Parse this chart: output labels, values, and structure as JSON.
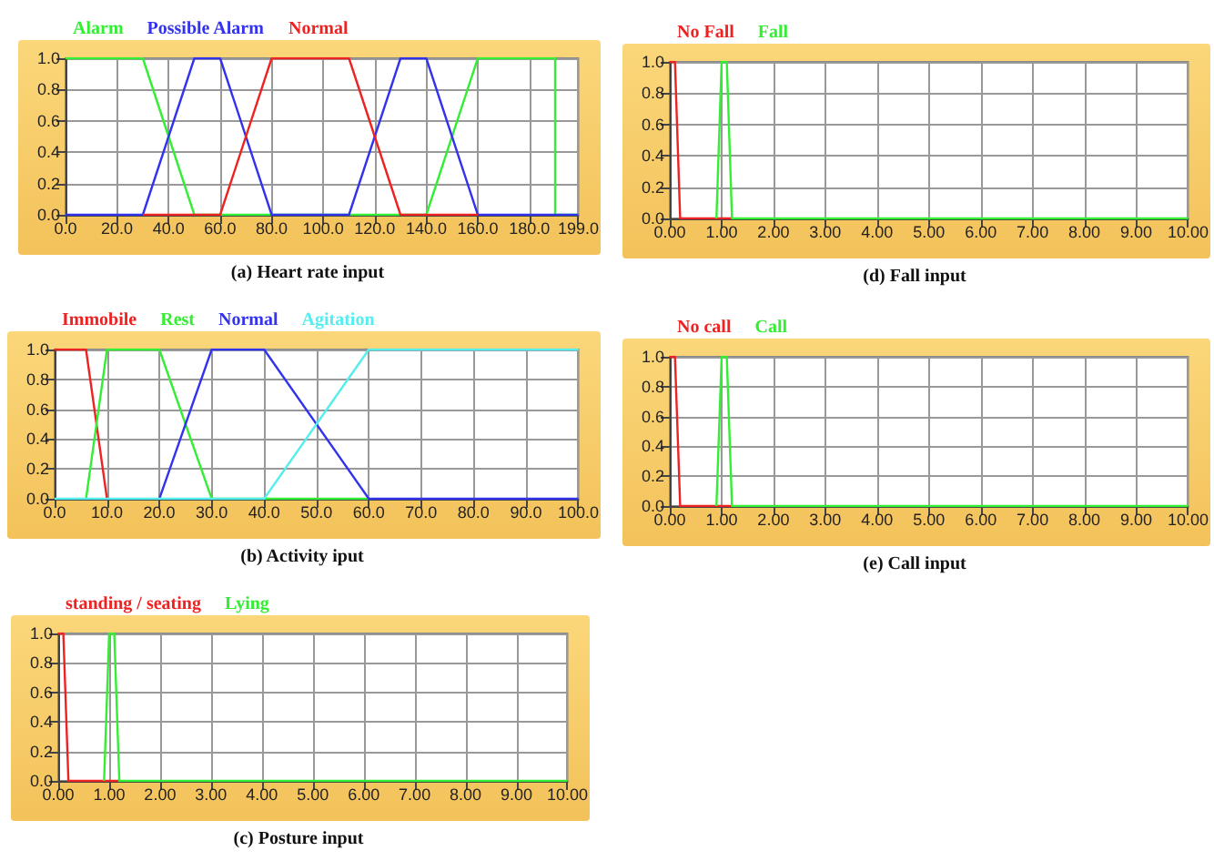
{
  "chart_data": [
    {
      "type": "line",
      "title": "(a) Heart rate input",
      "legend": "top left",
      "grid": true,
      "xlim": [
        0,
        199
      ],
      "ylim": [
        0,
        1
      ],
      "xticks": [
        {
          "value": 0,
          "label": "0.0"
        },
        {
          "value": 20,
          "label": "20.0"
        },
        {
          "value": 40,
          "label": "40.0"
        },
        {
          "value": 60,
          "label": "60.0"
        },
        {
          "value": 80,
          "label": "80.0"
        },
        {
          "value": 100,
          "label": "100.0"
        },
        {
          "value": 120,
          "label": "120.0"
        },
        {
          "value": 140,
          "label": "140.0"
        },
        {
          "value": 160,
          "label": "160.0"
        },
        {
          "value": 180,
          "label": "180.0"
        },
        {
          "value": 199,
          "label": "199.0"
        }
      ],
      "yticks": [
        {
          "value": 0,
          "label": "0.0"
        },
        {
          "value": 0.2,
          "label": "0.2"
        },
        {
          "value": 0.4,
          "label": "0.4"
        },
        {
          "value": 0.6,
          "label": "0.6"
        },
        {
          "value": 0.8,
          "label": "0.8"
        },
        {
          "value": 1,
          "label": "1.0"
        }
      ],
      "series": [
        {
          "name": "Alarm",
          "color": "#33ee33",
          "x": [
            0,
            30,
            50,
            140,
            160,
            190,
            190,
            199
          ],
          "values": [
            1,
            1,
            0,
            0,
            1,
            1,
            0,
            0
          ]
        },
        {
          "name": "Possible Alarm",
          "color": "#3333ee",
          "x": [
            0,
            30,
            50,
            60,
            80,
            110,
            130,
            140,
            160,
            199
          ],
          "values": [
            0,
            0,
            1,
            1,
            0,
            0,
            1,
            1,
            0,
            0
          ]
        },
        {
          "name": "Normal",
          "color": "#ee2222",
          "x": [
            30,
            60,
            80,
            110,
            130,
            160
          ],
          "values": [
            0,
            0,
            1,
            1,
            0,
            0
          ]
        }
      ]
    },
    {
      "type": "line",
      "title": "(d) Fall input",
      "legend": "top left",
      "grid": true,
      "xlim": [
        0,
        10
      ],
      "ylim": [
        0,
        1
      ],
      "xticks": [
        {
          "value": 0,
          "label": "0.00"
        },
        {
          "value": 1,
          "label": "1.00"
        },
        {
          "value": 2,
          "label": "2.00"
        },
        {
          "value": 3,
          "label": "3.00"
        },
        {
          "value": 4,
          "label": "4.00"
        },
        {
          "value": 5,
          "label": "5.00"
        },
        {
          "value": 6,
          "label": "6.00"
        },
        {
          "value": 7,
          "label": "7.00"
        },
        {
          "value": 8,
          "label": "8.00"
        },
        {
          "value": 9,
          "label": "9.00"
        },
        {
          "value": 10,
          "label": "10.00"
        }
      ],
      "yticks": [
        {
          "value": 0,
          "label": "0.0"
        },
        {
          "value": 0.2,
          "label": "0.2"
        },
        {
          "value": 0.4,
          "label": "0.4"
        },
        {
          "value": 0.6,
          "label": "0.6"
        },
        {
          "value": 0.8,
          "label": "0.8"
        },
        {
          "value": 1,
          "label": "1.0"
        }
      ],
      "series": [
        {
          "name": "No Fall",
          "color": "#ee2222",
          "x": [
            0,
            0.1,
            0.2,
            1.2
          ],
          "values": [
            1,
            1,
            0,
            0
          ]
        },
        {
          "name": "Fall",
          "color": "#33ee33",
          "x": [
            0.9,
            1.0,
            1.1,
            1.2,
            10
          ],
          "values": [
            0,
            1,
            1,
            0,
            0
          ]
        }
      ]
    },
    {
      "type": "line",
      "title": "(b) Activity iput",
      "legend": "top left",
      "grid": true,
      "xlim": [
        0,
        100
      ],
      "ylim": [
        0,
        1
      ],
      "xticks": [
        {
          "value": 0,
          "label": "0.0"
        },
        {
          "value": 10,
          "label": "10.0"
        },
        {
          "value": 20,
          "label": "20.0"
        },
        {
          "value": 30,
          "label": "30.0"
        },
        {
          "value": 40,
          "label": "40.0"
        },
        {
          "value": 50,
          "label": "50.0"
        },
        {
          "value": 60,
          "label": "60.0"
        },
        {
          "value": 70,
          "label": "70.0"
        },
        {
          "value": 80,
          "label": "80.0"
        },
        {
          "value": 90,
          "label": "90.0"
        },
        {
          "value": 100,
          "label": "100.0"
        }
      ],
      "yticks": [
        {
          "value": 0,
          "label": "0.0"
        },
        {
          "value": 0.2,
          "label": "0.2"
        },
        {
          "value": 0.4,
          "label": "0.4"
        },
        {
          "value": 0.6,
          "label": "0.6"
        },
        {
          "value": 0.8,
          "label": "0.8"
        },
        {
          "value": 1,
          "label": "1.0"
        }
      ],
      "series": [
        {
          "name": "Immobile",
          "color": "#ee2222",
          "x": [
            0,
            6,
            10
          ],
          "values": [
            1,
            1,
            0
          ]
        },
        {
          "name": "Rest",
          "color": "#33ee33",
          "x": [
            6,
            10,
            20,
            30,
            60
          ],
          "values": [
            0,
            1,
            1,
            0,
            0
          ]
        },
        {
          "name": "Normal",
          "color": "#3333ee",
          "x": [
            20,
            30,
            40,
            60,
            100
          ],
          "values": [
            0,
            1,
            1,
            0,
            0
          ]
        },
        {
          "name": "Agitation",
          "color": "#55eeee",
          "x": [
            0,
            40,
            60,
            100
          ],
          "values": [
            0,
            0,
            1,
            1
          ]
        }
      ]
    },
    {
      "type": "line",
      "title": "(e) Call input",
      "legend": "top left",
      "grid": true,
      "xlim": [
        0,
        10
      ],
      "ylim": [
        0,
        1
      ],
      "xticks": [
        {
          "value": 0,
          "label": "0.00"
        },
        {
          "value": 1,
          "label": "1.00"
        },
        {
          "value": 2,
          "label": "2.00"
        },
        {
          "value": 3,
          "label": "3.00"
        },
        {
          "value": 4,
          "label": "4.00"
        },
        {
          "value": 5,
          "label": "5.00"
        },
        {
          "value": 6,
          "label": "6.00"
        },
        {
          "value": 7,
          "label": "7.00"
        },
        {
          "value": 8,
          "label": "8.00"
        },
        {
          "value": 9,
          "label": "9.00"
        },
        {
          "value": 10,
          "label": "10.00"
        }
      ],
      "yticks": [
        {
          "value": 0,
          "label": "0.0"
        },
        {
          "value": 0.2,
          "label": "0.2"
        },
        {
          "value": 0.4,
          "label": "0.4"
        },
        {
          "value": 0.6,
          "label": "0.6"
        },
        {
          "value": 0.8,
          "label": "0.8"
        },
        {
          "value": 1,
          "label": "1.0"
        }
      ],
      "series": [
        {
          "name": "No call",
          "color": "#ee2222",
          "x": [
            0,
            0.1,
            0.2,
            1.2
          ],
          "values": [
            1,
            1,
            0,
            0
          ]
        },
        {
          "name": "Call",
          "color": "#33ee33",
          "x": [
            0.9,
            1.0,
            1.1,
            1.2,
            10
          ],
          "values": [
            0,
            1,
            1,
            0,
            0
          ]
        }
      ]
    },
    {
      "type": "line",
      "title": "(c) Posture input",
      "legend": "top left",
      "grid": true,
      "xlim": [
        0,
        10
      ],
      "ylim": [
        0,
        1
      ],
      "xticks": [
        {
          "value": 0,
          "label": "0.00"
        },
        {
          "value": 1,
          "label": "1.00"
        },
        {
          "value": 2,
          "label": "2.00"
        },
        {
          "value": 3,
          "label": "3.00"
        },
        {
          "value": 4,
          "label": "4.00"
        },
        {
          "value": 5,
          "label": "5.00"
        },
        {
          "value": 6,
          "label": "6.00"
        },
        {
          "value": 7,
          "label": "7.00"
        },
        {
          "value": 8,
          "label": "8.00"
        },
        {
          "value": 9,
          "label": "9.00"
        },
        {
          "value": 10,
          "label": "10.00"
        }
      ],
      "yticks": [
        {
          "value": 0,
          "label": "0.0"
        },
        {
          "value": 0.2,
          "label": "0.2"
        },
        {
          "value": 0.4,
          "label": "0.4"
        },
        {
          "value": 0.6,
          "label": "0.6"
        },
        {
          "value": 0.8,
          "label": "0.8"
        },
        {
          "value": 1,
          "label": "1.0"
        }
      ],
      "series": [
        {
          "name": "standing / seating",
          "color": "#ee2222",
          "x": [
            0,
            0.1,
            0.2,
            1.2
          ],
          "values": [
            1,
            1,
            0,
            0
          ]
        },
        {
          "name": "Lying",
          "color": "#33ee33",
          "x": [
            0.9,
            1.0,
            1.1,
            1.2,
            10
          ],
          "values": [
            0,
            1,
            1,
            0,
            0
          ]
        }
      ]
    }
  ]
}
